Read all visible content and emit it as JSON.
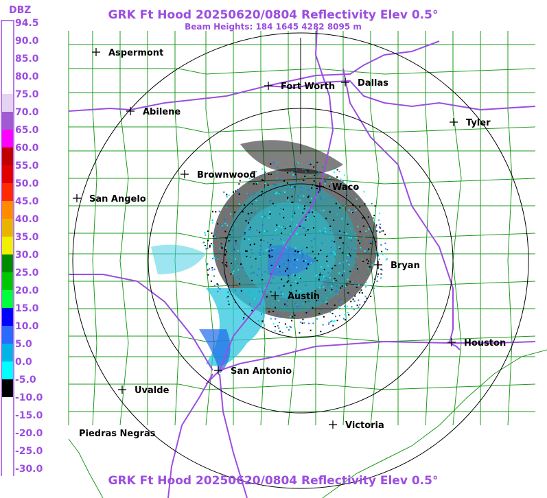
{
  "header": {
    "title": "GRK Ft Hood 20250620/0804 Reflectivity Elev 0.5°",
    "beam_heights": "Beam Heights: 184 1645 4282 8095 m",
    "footer_title": "GRK Ft Hood 20250620/0804 Reflectivity Elev 0.5°"
  },
  "legend": {
    "unit": "DBZ",
    "ticks": [
      {
        "label": "94.5",
        "color": "#ffffff"
      },
      {
        "label": "90.0",
        "color": "#ffffff"
      },
      {
        "label": "85.0",
        "color": "#ffffff"
      },
      {
        "label": "80.0",
        "color": "#ffffff"
      },
      {
        "label": "75.0",
        "color": "#e6d2f2"
      },
      {
        "label": "70.0",
        "color": "#a05ad2"
      },
      {
        "label": "65.0",
        "color": "#ff00ff"
      },
      {
        "label": "60.0",
        "color": "#c00000"
      },
      {
        "label": "55.0",
        "color": "#e00000"
      },
      {
        "label": "50.0",
        "color": "#ff2a00"
      },
      {
        "label": "45.0",
        "color": "#ff8c00"
      },
      {
        "label": "40.0",
        "color": "#e8b400"
      },
      {
        "label": "35.0",
        "color": "#f0f000"
      },
      {
        "label": "30.0",
        "color": "#008c00"
      },
      {
        "label": "25.0",
        "color": "#00c800"
      },
      {
        "label": "20.0",
        "color": "#00ff3c"
      },
      {
        "label": "15.0",
        "color": "#0000ff"
      },
      {
        "label": "10.0",
        "color": "#2a6aff"
      },
      {
        "label": "5.0",
        "color": "#00b4e6"
      },
      {
        "label": "0.0",
        "color": "#00ffff"
      },
      {
        "label": "-5.0",
        "color": "#000000"
      },
      {
        "label": "-10.0",
        "color": "#ffffff"
      },
      {
        "label": "-15.0",
        "color": "#ffffff"
      },
      {
        "label": "-20.0",
        "color": "#ffffff"
      },
      {
        "label": "-25.0",
        "color": "#ffffff"
      },
      {
        "label": "-30.0",
        "color": "#ffffff"
      }
    ]
  },
  "cities": [
    {
      "name": "Aspermont"
    },
    {
      "name": "Fort Worth"
    },
    {
      "name": "Dallas"
    },
    {
      "name": "Abilene"
    },
    {
      "name": "Tyler"
    },
    {
      "name": "Brownwood"
    },
    {
      "name": "Waco"
    },
    {
      "name": "San Angelo"
    },
    {
      "name": "Bryan"
    },
    {
      "name": "Austin"
    },
    {
      "name": "Houston"
    },
    {
      "name": "San Antonio"
    },
    {
      "name": "Uvalde"
    },
    {
      "name": "Victoria"
    },
    {
      "name": "Piedras Negras"
    }
  ],
  "colors": {
    "title": "#9b4de0",
    "highway": "#9b4de0",
    "county_lines": "#1a9a1a",
    "range_rings": "#000000"
  }
}
